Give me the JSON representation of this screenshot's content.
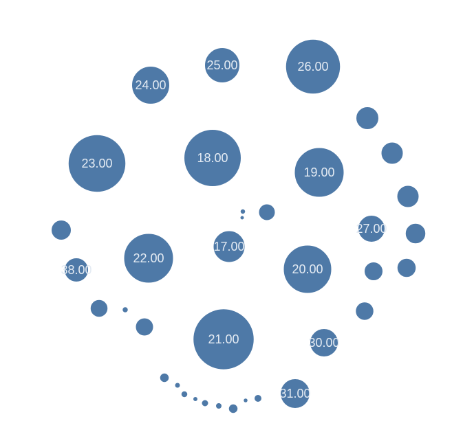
{
  "chart_data": {
    "type": "bubble",
    "title": "",
    "color": "#4e79a7",
    "label_color": "#e4ebf3",
    "bubbles": [
      {
        "label": "26.00",
        "value": 79.5
      },
      {
        "label": "23.00",
        "value": 83.5
      },
      {
        "label": "18.00",
        "value": 83.0
      },
      {
        "label": "21.00",
        "value": 88.5
      },
      {
        "label": "19.00",
        "value": 72.0
      },
      {
        "label": "22.00",
        "value": 72.0
      },
      {
        "label": "20.00",
        "value": 70.0
      },
      {
        "label": "24.00",
        "value": 55.0
      },
      {
        "label": "25.00",
        "value": 51.0
      },
      {
        "label": "17.00",
        "value": 46.0
      },
      {
        "label": "31.00",
        "value": 43.0
      },
      {
        "label": "30.00",
        "value": 41.0
      },
      {
        "label": "27.00",
        "value": 39.0
      },
      {
        "label": "38.00",
        "value": 35.0
      },
      {
        "label": "",
        "value": 33.0
      },
      {
        "label": "",
        "value": 32.0
      },
      {
        "label": "",
        "value": 32.0
      },
      {
        "label": "",
        "value": 29.0
      },
      {
        "label": "",
        "value": 29.5
      },
      {
        "label": "",
        "value": 27.5
      },
      {
        "label": "",
        "value": 27.0
      },
      {
        "label": "",
        "value": 25.5
      },
      {
        "label": "",
        "value": 26.5
      },
      {
        "label": "",
        "value": 26.0
      },
      {
        "label": "",
        "value": 24.0
      },
      {
        "label": "",
        "value": 13.5
      },
      {
        "label": "",
        "value": 13.5
      },
      {
        "label": "",
        "value": 11.0
      },
      {
        "label": "",
        "value": 9.5
      },
      {
        "label": "",
        "value": 10.0
      },
      {
        "label": "",
        "value": 9.0
      },
      {
        "label": "",
        "value": 8.0
      },
      {
        "label": "",
        "value": 8.5
      },
      {
        "label": "",
        "value": 7.0
      },
      {
        "label": "",
        "value": 7.5
      },
      {
        "label": "",
        "value": 6.5
      },
      {
        "label": "",
        "value": 6.0
      }
    ]
  }
}
